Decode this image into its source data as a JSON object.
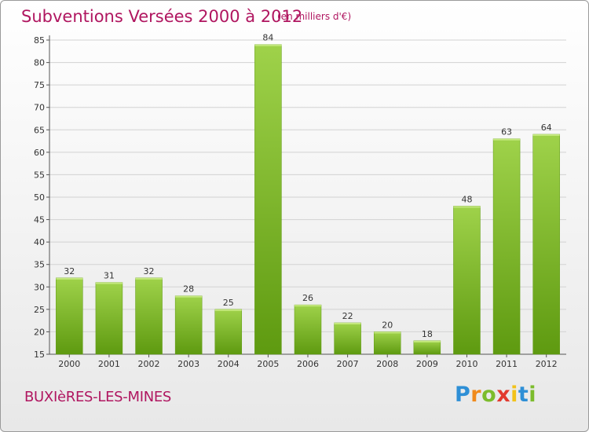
{
  "header": {
    "title": "Subventions Versées 2000 à 2012",
    "subtitle": "(en milliers d'€)"
  },
  "footer": {
    "commune": "BUXIèRES-LES-MINES",
    "logo_letters": [
      "P",
      "r",
      "o",
      "x",
      "i",
      "t",
      "i"
    ]
  },
  "colors": {
    "title": "#b01660",
    "bar_top": "#9fd24a",
    "bar_bottom": "#5e9a10",
    "grid": "#d2d2d2"
  },
  "chart_data": {
    "type": "bar",
    "categories": [
      "2000",
      "2001",
      "2002",
      "2003",
      "2004",
      "2005",
      "2006",
      "2007",
      "2008",
      "2009",
      "2010",
      "2011",
      "2012"
    ],
    "values": [
      32,
      31,
      32,
      28,
      25,
      84,
      26,
      22,
      20,
      18,
      48,
      63,
      64
    ],
    "ylim": [
      15,
      85
    ],
    "yticks": [
      15,
      20,
      25,
      30,
      35,
      40,
      45,
      50,
      55,
      60,
      65,
      70,
      75,
      80,
      85
    ],
    "grid": true,
    "legend": "none"
  }
}
